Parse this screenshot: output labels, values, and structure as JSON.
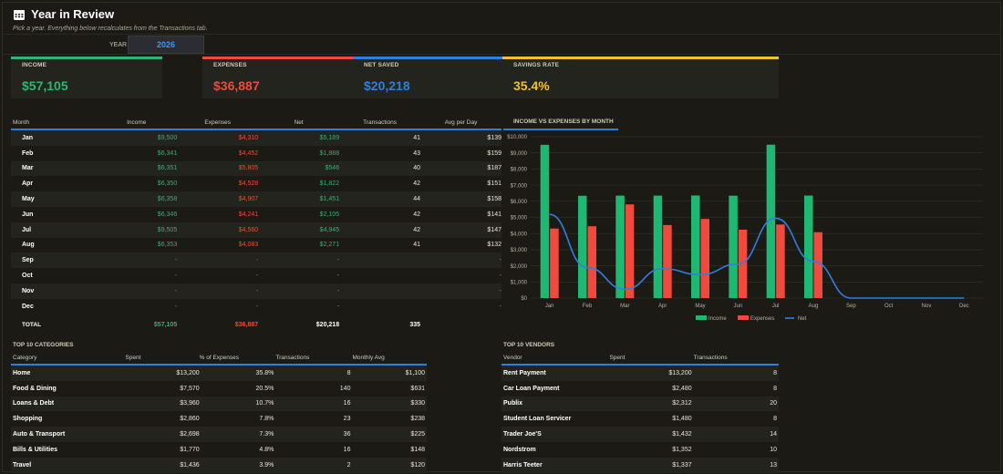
{
  "header": {
    "title": "Year in Review",
    "subtitle": "Pick a year. Everything below recalculates from the Transactions tab.",
    "year_label": "YEAR",
    "year_value": "2026"
  },
  "kpis": [
    {
      "label": "INCOME",
      "value": "$57,105",
      "color": "#2bb673"
    },
    {
      "label": "EXPENSES",
      "value": "$36,887",
      "color": "#ef4a3c"
    },
    {
      "label": "NET SAVED",
      "value": "$20,218",
      "color": "#2f7fe0"
    },
    {
      "label": "SAVINGS RATE",
      "value": "35.4%",
      "color": "#f2c12e"
    }
  ],
  "monthly": {
    "headers": [
      "Month",
      "Income",
      "Expenses",
      "Net",
      "Transactions",
      "Avg per Day"
    ],
    "rows": [
      {
        "month": "Jan",
        "income": "$9,500",
        "expenses": "$4,310",
        "net": "$5,189",
        "tx": "41",
        "avg": "$139"
      },
      {
        "month": "Feb",
        "income": "$6,341",
        "expenses": "$4,452",
        "net": "$1,888",
        "tx": "43",
        "avg": "$159"
      },
      {
        "month": "Mar",
        "income": "$6,351",
        "expenses": "$5,805",
        "net": "$546",
        "tx": "40",
        "avg": "$187"
      },
      {
        "month": "Apr",
        "income": "$6,350",
        "expenses": "$4,528",
        "net": "$1,822",
        "tx": "42",
        "avg": "$151"
      },
      {
        "month": "May",
        "income": "$6,358",
        "expenses": "$4,907",
        "net": "$1,451",
        "tx": "44",
        "avg": "$158"
      },
      {
        "month": "Jun",
        "income": "$6,346",
        "expenses": "$4,241",
        "net": "$2,105",
        "tx": "42",
        "avg": "$141"
      },
      {
        "month": "Jul",
        "income": "$9,505",
        "expenses": "$4,560",
        "net": "$4,945",
        "tx": "42",
        "avg": "$147"
      },
      {
        "month": "Aug",
        "income": "$6,353",
        "expenses": "$4,083",
        "net": "$2,271",
        "tx": "41",
        "avg": "$132"
      },
      {
        "month": "Sep",
        "income": "-",
        "expenses": "-",
        "net": "-",
        "tx": "",
        "avg": "-"
      },
      {
        "month": "Oct",
        "income": "-",
        "expenses": "-",
        "net": "-",
        "tx": "",
        "avg": "-"
      },
      {
        "month": "Nov",
        "income": "-",
        "expenses": "-",
        "net": "-",
        "tx": "",
        "avg": "-"
      },
      {
        "month": "Dec",
        "income": "-",
        "expenses": "-",
        "net": "-",
        "tx": "",
        "avg": "-"
      }
    ],
    "total": {
      "label": "TOTAL",
      "income": "$57,105",
      "expenses": "$36,887",
      "net": "$20,218",
      "tx": "335",
      "avg": ""
    }
  },
  "categories": {
    "title": "TOP 10 CATEGORIES",
    "headers": [
      "Category",
      "Spent",
      "% of Expenses",
      "Transactions",
      "Monthly Avg"
    ],
    "rows": [
      {
        "name": "Home",
        "spent": "$13,200",
        "pct": "35.8%",
        "tx": "8",
        "avg": "$1,100"
      },
      {
        "name": "Food & Dining",
        "spent": "$7,570",
        "pct": "20.5%",
        "tx": "140",
        "avg": "$631"
      },
      {
        "name": "Loans & Debt",
        "spent": "$3,960",
        "pct": "10.7%",
        "tx": "16",
        "avg": "$330"
      },
      {
        "name": "Shopping",
        "spent": "$2,860",
        "pct": "7.8%",
        "tx": "23",
        "avg": "$238"
      },
      {
        "name": "Auto & Transport",
        "spent": "$2,698",
        "pct": "7.3%",
        "tx": "36",
        "avg": "$225"
      },
      {
        "name": "Bills & Utilities",
        "spent": "$1,770",
        "pct": "4.8%",
        "tx": "16",
        "avg": "$148"
      },
      {
        "name": "Travel",
        "spent": "$1,436",
        "pct": "3.9%",
        "tx": "2",
        "avg": "$120"
      }
    ]
  },
  "vendors": {
    "title": "TOP 10 VENDORS",
    "headers": [
      "Vendor",
      "Spent",
      "Transactions"
    ],
    "rows": [
      {
        "name": "Rent Payment",
        "spent": "$13,200",
        "tx": "8"
      },
      {
        "name": "Car Loan Payment",
        "spent": "$2,480",
        "tx": "8"
      },
      {
        "name": "Publix",
        "spent": "$2,312",
        "tx": "20"
      },
      {
        "name": "Student Loan Servicer",
        "spent": "$1,480",
        "tx": "8"
      },
      {
        "name": "Trader Joe'S",
        "spent": "$1,432",
        "tx": "14"
      },
      {
        "name": "Nordstrom",
        "spent": "$1,352",
        "tx": "10"
      },
      {
        "name": "Harris Teeter",
        "spent": "$1,337",
        "tx": "13"
      }
    ]
  },
  "chart_data": {
    "type": "bar",
    "title": "INCOME VS EXPENSES BY MONTH",
    "categories": [
      "Jan",
      "Feb",
      "Mar",
      "Apr",
      "May",
      "Jun",
      "Jul",
      "Aug",
      "Sep",
      "Oct",
      "Nov",
      "Dec"
    ],
    "series": [
      {
        "name": "Income",
        "type": "bar",
        "color": "#1fb872",
        "values": [
          9500,
          6341,
          6351,
          6350,
          6358,
          6346,
          9505,
          6353,
          0,
          0,
          0,
          0
        ]
      },
      {
        "name": "Expenses",
        "type": "bar",
        "color": "#ef4a3c",
        "values": [
          4310,
          4452,
          5805,
          4528,
          4907,
          4241,
          4560,
          4083,
          0,
          0,
          0,
          0
        ]
      },
      {
        "name": "Net",
        "type": "line",
        "color": "#2f7fe0",
        "values": [
          5189,
          1888,
          546,
          1822,
          1451,
          2105,
          4945,
          2271,
          0,
          0,
          0,
          0
        ]
      }
    ],
    "ylim": [
      0,
      10000
    ],
    "yticks": [
      "$0",
      "$1,000",
      "$2,000",
      "$3,000",
      "$4,000",
      "$5,000",
      "$6,000",
      "$7,000",
      "$8,000",
      "$9,000",
      "$10,000"
    ],
    "grid": true,
    "legend": "bottom-center"
  }
}
